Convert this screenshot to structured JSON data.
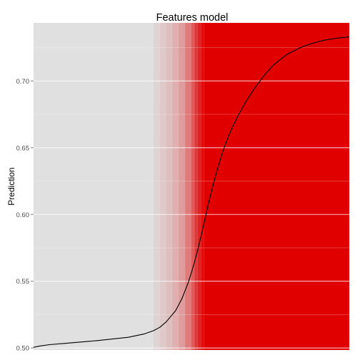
{
  "chart_data": {
    "type": "line",
    "title": "Features model",
    "xlabel": "",
    "ylabel": "Prediction",
    "ylim": [
      0.4985,
      0.7435
    ],
    "xlim": [
      0,
      1
    ],
    "y_ticks": [
      "0.50",
      "0.55",
      "0.60",
      "0.65",
      "0.70"
    ],
    "y_tick_values": [
      0.5,
      0.55,
      0.6,
      0.65,
      0.7
    ],
    "grid": true,
    "panel_color": "#e0e0e0",
    "grid_color": "#ffffff",
    "highlight_color": "#e00000",
    "line_color": "#000000",
    "series": [
      {
        "x": [
          0.0,
          0.02,
          0.05,
          0.1,
          0.2,
          0.3,
          0.35,
          0.38,
          0.4,
          0.42,
          0.45,
          0.47,
          0.49,
          0.5,
          0.51,
          0.52,
          0.53,
          0.54,
          0.55,
          0.56,
          0.57,
          0.58,
          0.59,
          0.6,
          0.61,
          0.62,
          0.63,
          0.65,
          0.67,
          0.7,
          0.73,
          0.76,
          0.8,
          0.84,
          0.88,
          0.92,
          0.96,
          1.0
        ],
        "y": [
          0.5005,
          0.5015,
          0.5025,
          0.5035,
          0.5055,
          0.508,
          0.5105,
          0.513,
          0.5155,
          0.5195,
          0.528,
          0.537,
          0.549,
          0.5565,
          0.5645,
          0.5735,
          0.5835,
          0.5935,
          0.604,
          0.614,
          0.623,
          0.632,
          0.64,
          0.6475,
          0.654,
          0.66,
          0.6655,
          0.675,
          0.6835,
          0.6945,
          0.704,
          0.712,
          0.7195,
          0.7245,
          0.728,
          0.7305,
          0.732,
          0.733
        ]
      }
    ],
    "highlight_band": [
      {
        "x": 0.38,
        "alpha": 0.05
      },
      {
        "x": 0.4,
        "alpha": 0.1
      },
      {
        "x": 0.42,
        "alpha": 0.15
      },
      {
        "x": 0.44,
        "alpha": 0.22
      },
      {
        "x": 0.46,
        "alpha": 0.3
      },
      {
        "x": 0.48,
        "alpha": 0.45
      },
      {
        "x": 0.5,
        "alpha": 0.6
      },
      {
        "x": 0.51,
        "alpha": 0.75
      },
      {
        "x": 0.52,
        "alpha": 0.85
      },
      {
        "x": 0.53,
        "alpha": 0.95
      }
    ],
    "highlight_solid_from": 0.54
  }
}
